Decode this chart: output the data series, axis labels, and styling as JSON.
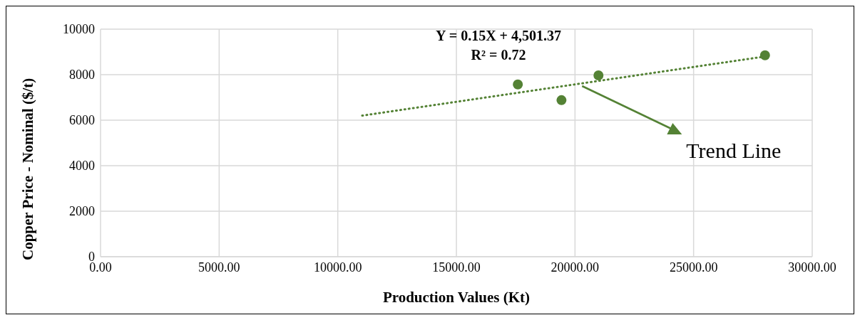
{
  "chart_data": {
    "type": "scatter",
    "xlabel": "Production Values (Kt)",
    "ylabel": "Copper Price - Nominal ($/t)",
    "series": [
      {
        "color": "#548235",
        "x": [
          17590,
          19430,
          20990,
          28010
        ],
        "values": [
          7570,
          6880,
          7970,
          8850
        ],
        "marker": "circle"
      },
      {
        "type": "line",
        "color": "#548235",
        "x": [
          11030,
          28010
        ],
        "values": [
          6200,
          8800
        ],
        "line_style": "dotted",
        "marker": "none"
      }
    ],
    "xlim": [
      0,
      30000
    ],
    "ylim": [
      0,
      10000
    ],
    "xticks": [
      {
        "value": 0,
        "label": "0.00"
      },
      {
        "value": 5000,
        "label": "5000.00"
      },
      {
        "value": 10000,
        "label": "10000.00"
      },
      {
        "value": 15000,
        "label": "15000.00"
      },
      {
        "value": 20000,
        "label": "20000.00"
      },
      {
        "value": 25000,
        "label": "25000.00"
      },
      {
        "value": 30000,
        "label": "30000.00"
      }
    ],
    "yticks": [
      0,
      2000,
      4000,
      6000,
      8000,
      10000
    ],
    "grid": true,
    "annotations": [
      "Y = 0.15X + 4,501.37",
      "R² = 0.72",
      {
        "text": "Trend Line",
        "x": 20300,
        "y": 7500
      }
    ]
  }
}
